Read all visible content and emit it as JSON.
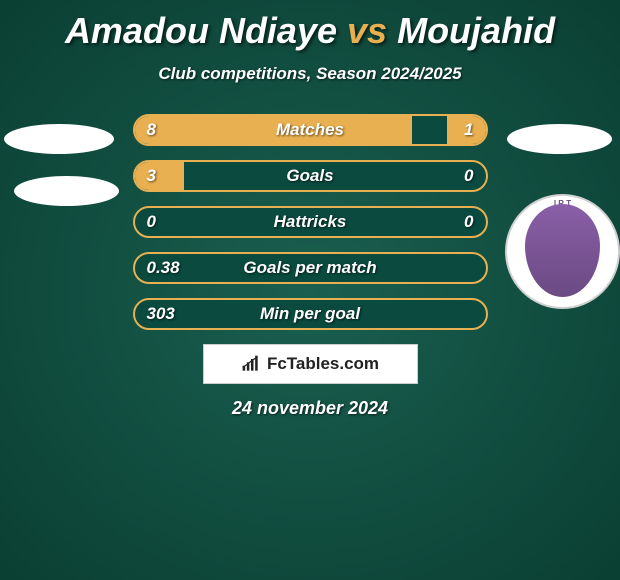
{
  "title": {
    "player1": "Amadou Ndiaye",
    "vs": "vs",
    "player2": "Moujahid",
    "color_p1": "#ffffff",
    "color_vs": "#e8b050",
    "color_p2": "#ffffff",
    "fontsize": 36
  },
  "subtitle": "Club competitions, Season 2024/2025",
  "bar_style": {
    "border_color": "#e8b050",
    "fill_color": "#e8b050",
    "bg_color": "#0a4a3f",
    "border_radius": 16,
    "height": 32,
    "label_fontsize": 17,
    "text_color": "#ffffff"
  },
  "rows": [
    {
      "label": "Matches",
      "left": "8",
      "right": "1",
      "left_pct": 79,
      "right_pct": 11
    },
    {
      "label": "Goals",
      "left": "3",
      "right": "0",
      "left_pct": 14,
      "right_pct": 0
    },
    {
      "label": "Hattricks",
      "left": "0",
      "right": "0",
      "left_pct": 0,
      "right_pct": 0
    },
    {
      "label": "Goals per match",
      "left": "0.38",
      "right": "",
      "left_pct": 0,
      "right_pct": 0
    },
    {
      "label": "Min per goal",
      "left": "303",
      "right": "",
      "left_pct": 0,
      "right_pct": 0
    }
  ],
  "side_shapes": {
    "left_ellipse_color": "#ffffff",
    "right_ellipse_color": "#ffffff",
    "badge_bg": "#ffffff",
    "badge_inner": "#7a559a",
    "badge_text": "I.R.T"
  },
  "footer": {
    "brand": "FcTables.com",
    "icon_color": "#222222",
    "box_bg": "#ffffff"
  },
  "date": "24 november 2024",
  "background": {
    "gradient_center": "#1a5f4f",
    "gradient_edge": "#0a3f33"
  }
}
